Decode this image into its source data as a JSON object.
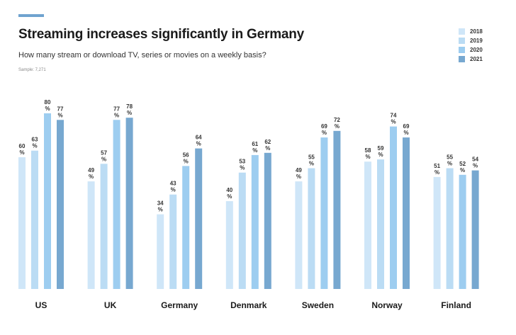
{
  "title": "Streaming increases significantly in Germany",
  "subtitle": "How many stream or download TV, series or movies on a weekly basis?",
  "sample": "Sample: 7,271",
  "colors": {
    "accent": "#6fa3cf",
    "text": "#1a1a1a"
  },
  "chart_data": {
    "type": "bar",
    "title": "Streaming increases significantly in Germany",
    "subtitle": "How many stream or download TV, series or movies on a weekly basis?",
    "xlabel": "",
    "ylabel": "",
    "ylim": [
      0,
      100
    ],
    "grid": false,
    "legend_position": "top-right",
    "value_suffix": "%",
    "categories": [
      "US",
      "UK",
      "Germany",
      "Denmark",
      "Sweden",
      "Norway",
      "Finland"
    ],
    "series": [
      {
        "name": "2018",
        "color": "#cfe6f8",
        "values": [
          60,
          49,
          34,
          40,
          49,
          58,
          51
        ]
      },
      {
        "name": "2019",
        "color": "#bbdcf4",
        "values": [
          63,
          57,
          43,
          53,
          55,
          59,
          55
        ]
      },
      {
        "name": "2020",
        "color": "#9dcdf0",
        "values": [
          80,
          77,
          56,
          61,
          69,
          74,
          52
        ]
      },
      {
        "name": "2021",
        "color": "#77a8d0",
        "values": [
          77,
          78,
          64,
          62,
          72,
          69,
          54
        ]
      }
    ]
  }
}
